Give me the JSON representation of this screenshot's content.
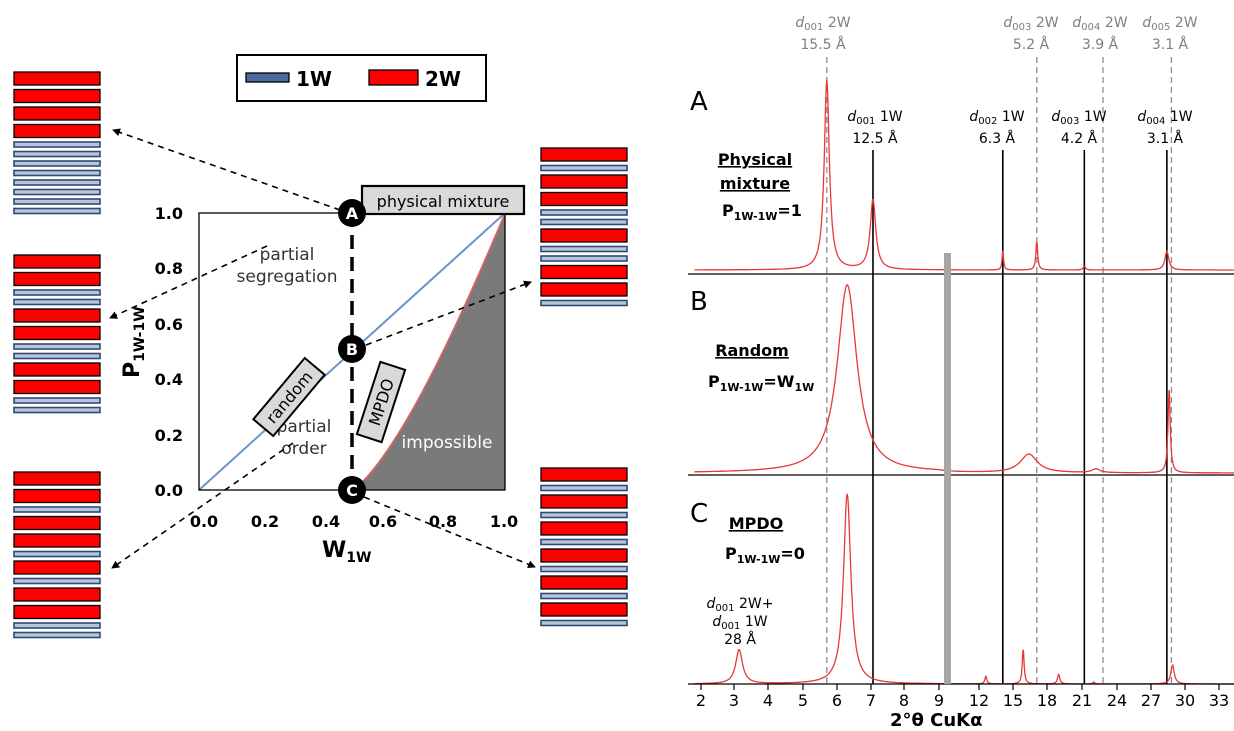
{
  "legend": {
    "items": [
      {
        "label": "1W",
        "color": "#4a6d9c"
      },
      {
        "label": "2W",
        "color": "#ff0000"
      }
    ]
  },
  "colors": {
    "water1": "#2e4a78",
    "water1_fill": "#b8c6da",
    "water2": "#ff0000",
    "spectrum": "#e8383a",
    "impossible": "#7a7a7a",
    "random_line": "#6b93c9",
    "mpdo_curve": "#e86060",
    "reference_grey": "#8c8c8c",
    "black": "#000000"
  },
  "stacks": [
    {
      "name": "stack-A",
      "pattern": [
        "2W",
        "2W",
        "2W",
        "2W",
        "1W",
        "1W",
        "1W",
        "1W",
        "1W",
        "1W",
        "1W",
        "1W"
      ]
    },
    {
      "name": "stack-partial-segregation",
      "pattern": [
        "2W",
        "2W",
        "1W",
        "1W",
        "2W",
        "2W",
        "1W",
        "1W",
        "2W",
        "2W",
        "1W",
        "1W"
      ]
    },
    {
      "name": "stack-partial-order",
      "pattern": [
        "2W",
        "2W",
        "1W",
        "2W",
        "2W",
        "1W",
        "2W",
        "1W",
        "2W",
        "2W",
        "1W",
        "1W"
      ]
    },
    {
      "name": "stack-B",
      "pattern": [
        "2W",
        "1W",
        "2W",
        "2W",
        "1W",
        "1W",
        "2W",
        "1W",
        "1W",
        "2W",
        "2W",
        "1W"
      ]
    },
    {
      "name": "stack-C",
      "pattern": [
        "2W",
        "1W",
        "2W",
        "1W",
        "2W",
        "1W",
        "2W",
        "1W",
        "2W",
        "1W",
        "2W",
        "1W"
      ]
    }
  ],
  "diagram": {
    "x_axis_label": "W",
    "x_axis_sub": "1W",
    "y_axis_label": "P",
    "y_axis_sub": "1W-1W",
    "x_ticks": [
      "0.0",
      "0.2",
      "0.4",
      "0.6",
      "0.8",
      "1.0"
    ],
    "y_ticks": [
      "0.0",
      "0.2",
      "0.4",
      "0.6",
      "0.8",
      "1.0"
    ],
    "point_labels": [
      "A",
      "B",
      "C"
    ],
    "boxed_labels": {
      "physical": "physical mixture",
      "random": "random",
      "mpdo": "MPDO"
    },
    "region_labels": {
      "segregation_1": "partial",
      "segregation_2": "segregation",
      "order_1": "partial",
      "order_2": "order",
      "impossible": "impossible"
    }
  },
  "xrd": {
    "x_axis_title": "2°θ CuKα",
    "x_ticks": [
      "2",
      "3",
      "4",
      "5",
      "6",
      "7",
      "8",
      "9",
      "12",
      "15",
      "18",
      "21",
      "24",
      "27",
      "30",
      "33"
    ],
    "panels": [
      {
        "letter": "A",
        "label": "Physical mixture",
        "label_line1": "Physical",
        "label_line2": "mixture",
        "eq_left": "P",
        "eq_sub": "1W-1W",
        "eq_right": "=1",
        "eq_right_sub": ""
      },
      {
        "letter": "B",
        "label": "Random",
        "eq_left": "P",
        "eq_sub": "1W-1W",
        "eq_right": "=W",
        "eq_right_sub": "1W"
      },
      {
        "letter": "C",
        "label": "MPDO",
        "eq_left": "P",
        "eq_sub": "1W-1W",
        "eq_right": "=0",
        "eq_right_sub": ""
      }
    ],
    "reference_2W": [
      {
        "d": "d",
        "sub": "001",
        "phase": " 2W",
        "value": "15.5 Å"
      },
      {
        "d": "d",
        "sub": "003",
        "phase": " 2W",
        "value": "5.2 Å"
      },
      {
        "d": "d",
        "sub": "004",
        "phase": " 2W",
        "value": "3.9 Å"
      },
      {
        "d": "d",
        "sub": "005",
        "phase": " 2W",
        "value": "3.1 Å"
      }
    ],
    "reference_1W": [
      {
        "d": "d",
        "sub": "001",
        "phase": " 1W",
        "value": "12.5 Å"
      },
      {
        "d": "d",
        "sub": "002",
        "phase": " 1W",
        "value": "6.3 Å"
      },
      {
        "d": "d",
        "sub": "003",
        "phase": " 1W",
        "value": "4.2 Å"
      },
      {
        "d": "d",
        "sub": "004",
        "phase": " 1W",
        "value": "3.1 Å"
      }
    ],
    "superstructure_label": {
      "line1_d": "d",
      "line1_sub": "001",
      "line1_phase": " 2W+",
      "line2_d": "d",
      "line2_sub": "001",
      "line2_phase": " 1W",
      "line3": "28 Å"
    }
  },
  "chart_data": [
    {
      "type": "area",
      "xlabel": "W1W",
      "ylabel": "P1W-1W",
      "xlim": [
        0,
        1
      ],
      "ylim": [
        0,
        1
      ],
      "series": [
        {
          "name": "random",
          "x": [
            0,
            1
          ],
          "y": [
            0,
            1
          ]
        },
        {
          "name": "MPDO",
          "x": [
            0.5,
            0.55,
            0.6,
            0.7,
            0.8,
            0.9,
            1.0
          ],
          "y": [
            0,
            0.18,
            0.33,
            0.57,
            0.75,
            0.89,
            1.0
          ]
        }
      ],
      "points": [
        {
          "label": "A",
          "x": 0.5,
          "y": 1.0
        },
        {
          "label": "B",
          "x": 0.5,
          "y": 0.5
        },
        {
          "label": "C",
          "x": 0.5,
          "y": 0.0
        }
      ],
      "regions": [
        "partial segregation",
        "partial order",
        "impossible"
      ]
    },
    {
      "type": "line",
      "xlabel": "2°θ CuKα",
      "x_tick_values": [
        2,
        3,
        4,
        5,
        6,
        7,
        8,
        9,
        12,
        15,
        18,
        21,
        24,
        27,
        30,
        33
      ],
      "reference_lines_2W_2theta": [
        5.7,
        17.1,
        22.8,
        28.8
      ],
      "reference_lines_1W_2theta": [
        7.06,
        14.1,
        21.2,
        28.4
      ],
      "series": [
        {
          "name": "A",
          "peaks": [
            [
              5.7,
              1.0
            ],
            [
              7.06,
              0.37
            ],
            [
              14.1,
              0.1
            ],
            [
              17.1,
              0.15
            ],
            [
              21.2,
              0.02
            ],
            [
              28.4,
              0.1
            ]
          ]
        },
        {
          "name": "B",
          "peaks": [
            [
              6.3,
              1.0
            ],
            [
              16.4,
              0.1
            ],
            [
              22.2,
              0.02
            ],
            [
              28.6,
              0.44
            ]
          ]
        },
        {
          "name": "C",
          "peaks": [
            [
              3.15,
              0.18
            ],
            [
              6.3,
              1.0
            ],
            [
              12.6,
              0.04
            ],
            [
              15.9,
              0.18
            ],
            [
              19.0,
              0.05
            ],
            [
              22.0,
              0.01
            ],
            [
              28.9,
              0.1
            ]
          ]
        }
      ]
    }
  ]
}
